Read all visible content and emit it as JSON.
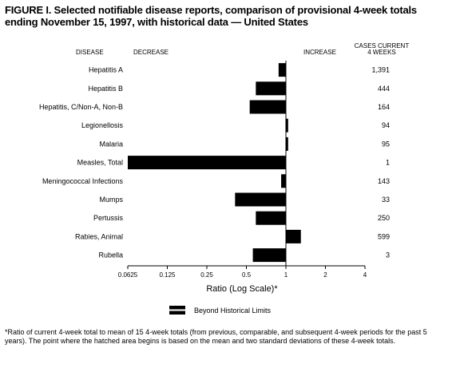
{
  "figure": {
    "title": "FIGURE I. Selected notifiable disease reports, comparison of provisional 4-week totals",
    "subtitle": "ending November 15, 1997, with historical data — United States"
  },
  "chart_data": {
    "type": "bar",
    "orientation": "horizontal",
    "column_headers": {
      "disease": "DISEASE",
      "decrease": "DECREASE",
      "increase": "INCREASE",
      "cases_line1": "CASES CURRENT",
      "cases_line2": "4 WEEKS"
    },
    "categories": [
      "Hepatitis A",
      "Hepatitis B",
      "Hepatitis, C/Non-A, Non-B",
      "Legionellosis",
      "Malaria",
      "Measles, Total",
      "Meningococcal Infections",
      "Mumps",
      "Pertussis",
      "Rabies, Animal",
      "Rubella"
    ],
    "values": [
      0.88,
      0.59,
      0.53,
      1.04,
      1.04,
      0.0625,
      0.92,
      0.41,
      0.59,
      1.3,
      0.56
    ],
    "cases_current_4_weeks": [
      "1,391",
      "444",
      "164",
      "94",
      "95",
      "1",
      "143",
      "33",
      "250",
      "599",
      "3"
    ],
    "xscale": "log2",
    "xlim": [
      0.0625,
      4
    ],
    "baseline": 1,
    "xticks": [
      0.0625,
      0.125,
      0.25,
      0.5,
      1,
      2,
      4
    ],
    "xtick_labels": [
      "0.0625",
      "0.125",
      "0.25",
      "0.5",
      "1",
      "2",
      "4"
    ],
    "xlabel": "Ratio (Log Scale)*",
    "legend": {
      "label": "Beyond Historical Limits",
      "placement": "bottom-center"
    },
    "bar_color": "#000000"
  },
  "footnote": {
    "marker": "*",
    "text": "Ratio of current 4-week total to mean of 15 4-week totals (from previous, comparable, and subsequent 4-week periods for the past 5 years). The point where the hatched area begins is based on the mean and two standard deviations of these 4-week totals."
  }
}
